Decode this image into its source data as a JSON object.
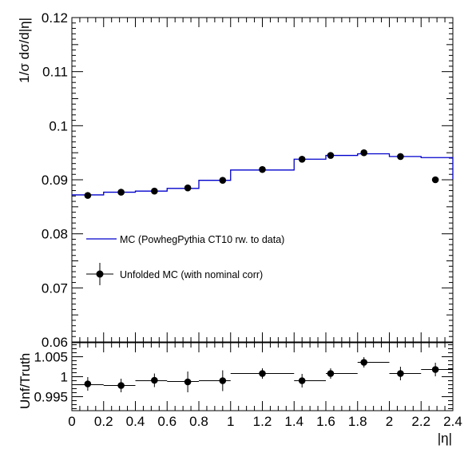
{
  "chart_data": [
    {
      "type": "line",
      "ylabel": "1/σ dσ/d|η|",
      "xlim": [
        0,
        2.4
      ],
      "ylim": [
        0.06,
        0.12
      ],
      "x_ticks": [
        "0",
        "0.2",
        "0.4",
        "0.6",
        "0.8",
        "1",
        "1.2",
        "1.4",
        "1.6",
        "1.8",
        "2",
        "2.2",
        "2.4"
      ],
      "y_ticks": [
        "0.06",
        "0.07",
        "0.08",
        "0.09",
        "0.1",
        "0.11",
        "0.12"
      ],
      "bin_edges": [
        0.0,
        0.2,
        0.4,
        0.6,
        0.8,
        1.0,
        1.4,
        1.6,
        1.8,
        2.0,
        2.2,
        2.4
      ],
      "mc_values": [
        0.0872,
        0.0877,
        0.0879,
        0.0884,
        0.0899,
        0.0918,
        0.0938,
        0.0945,
        0.0948,
        0.0943,
        0.0941,
        0.0901
      ],
      "points": {
        "x": [
          0.1,
          0.31,
          0.52,
          0.73,
          0.95,
          1.2,
          1.45,
          1.63,
          1.84,
          2.07,
          2.29
        ],
        "y": [
          0.0871,
          0.0877,
          0.0879,
          0.0885,
          0.0899,
          0.0919,
          0.0938,
          0.0945,
          0.095,
          0.0943,
          0.09
        ],
        "yerr": [
          0.0003,
          0.0003,
          0.0003,
          0.0003,
          0.0003,
          0.0003,
          0.0003,
          0.0003,
          0.0003,
          0.0003,
          0.0003
        ]
      },
      "legend": [
        {
          "label": "MC (PowhegPythia CT10 rw. to data)",
          "kind": "line",
          "color": "#0000cc"
        },
        {
          "label": "Unfolded MC (with nominal corr)",
          "kind": "marker",
          "color": "#000000"
        }
      ]
    },
    {
      "type": "scatter",
      "xlabel": "|η|",
      "ylabel": "Unf/Truth",
      "xlim": [
        0,
        2.4
      ],
      "ylim": [
        0.9915,
        1.0085
      ],
      "y_ticks": [
        "0.995",
        "1",
        "1.005"
      ],
      "bin_edges": [
        0.0,
        0.2,
        0.4,
        0.6,
        0.8,
        1.0,
        1.4,
        1.6,
        1.8,
        2.0,
        2.2,
        2.4
      ],
      "ratio_line": [
        0.998,
        0.9978,
        0.999,
        0.9988,
        0.999,
        1.0008,
        0.999,
        1.0008,
        1.0036,
        1.0008,
        1.0018,
        1.0018
      ],
      "points": {
        "x": [
          0.1,
          0.31,
          0.52,
          0.73,
          0.95,
          1.2,
          1.45,
          1.63,
          1.84,
          2.07,
          2.29
        ],
        "y": [
          0.9982,
          0.9978,
          0.9991,
          0.9987,
          0.999,
          1.0008,
          0.999,
          1.0008,
          1.0036,
          1.0008,
          1.0018
        ],
        "yerr": [
          0.0017,
          0.0017,
          0.0017,
          0.0026,
          0.0026,
          0.0013,
          0.0017,
          0.0013,
          0.0013,
          0.0017,
          0.0017
        ]
      }
    }
  ]
}
